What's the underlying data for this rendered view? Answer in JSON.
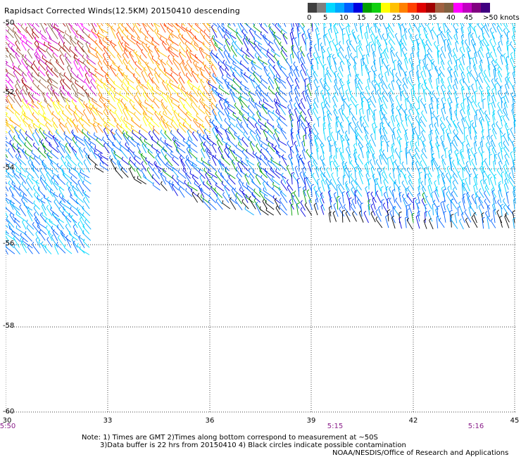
{
  "title": "Rapidsact Corrected Winds(12.5KM) 20150410 descending",
  "colorbar": {
    "colors": [
      "#3f3f3f",
      "#7f7f7f",
      "#00d8ff",
      "#00a8ff",
      "#0060ff",
      "#0000e0",
      "#00a000",
      "#10d010",
      "#ffff00",
      "#ffc000",
      "#ff8000",
      "#ff4000",
      "#e00000",
      "#a00000",
      "#a06040",
      "#806040",
      "#ff00ff",
      "#c000c0",
      "#800080",
      "#400080"
    ],
    "labels": [
      "0",
      "5",
      "10",
      "15",
      "20",
      "25",
      "30",
      "35",
      "40",
      "45",
      ">50 knots"
    ]
  },
  "axes": {
    "lat_ticks": [
      "-50",
      "-52",
      "-54",
      "-56",
      "-58",
      "-60"
    ],
    "lon_ticks": [
      "30",
      "33",
      "36",
      "39",
      "42",
      "45"
    ],
    "time_labels": [
      "5:50",
      "5:15",
      "5:16"
    ]
  },
  "notes": {
    "line1": "Note: 1) Times are GMT 2)Times along bottom correspond to measurement at ~50S",
    "line2": "3)Data buffer is 22 hrs from 20150410 4) Black circles indicate possible contamination",
    "credit": "NOAA/NESDIS/Office of Research and Applications"
  }
}
